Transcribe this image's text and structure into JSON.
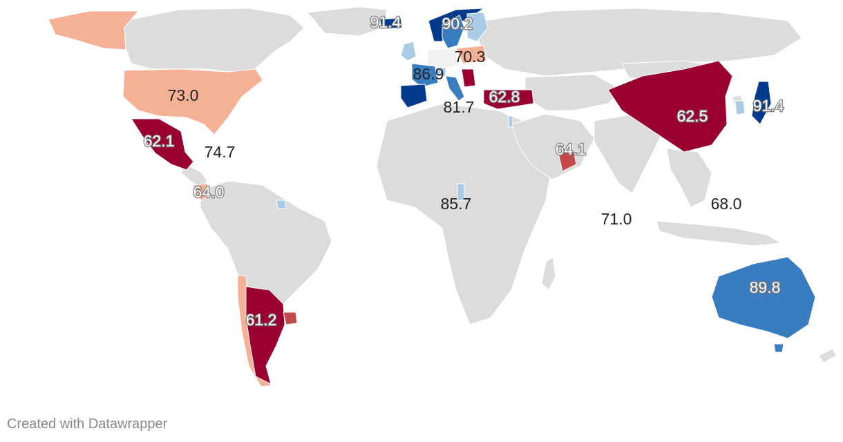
{
  "credit": "Created with Datawrapper",
  "colors": {
    "no_data": "#dcdcdc",
    "very_low": "#99002f",
    "low": "#c24a4a",
    "mid_low": "#f5b196",
    "mid": "#f2f2f2",
    "mid_high": "#a9cbe6",
    "high": "#3a7cc0",
    "very_high": "#003a8c",
    "border": "#ffffff",
    "dark_label": "#222222",
    "light_label_outline": "#7a7a7a"
  },
  "labels": [
    {
      "id": "norway-label",
      "value": "91.4"
    },
    {
      "id": "sweden-label",
      "value": "90.2"
    },
    {
      "id": "poland-label",
      "value": "70.3"
    },
    {
      "id": "usa-label",
      "value": "73.0"
    },
    {
      "id": "switzerland-label",
      "value": "86.9"
    },
    {
      "id": "turkey-label",
      "value": "62.8"
    },
    {
      "id": "italy-label",
      "value": "81.7"
    },
    {
      "id": "china-label",
      "value": "62.5"
    },
    {
      "id": "japan-label",
      "value": "91.4"
    },
    {
      "id": "mexico-label",
      "value": "62.1"
    },
    {
      "id": "caribbean-label",
      "value": "74.7"
    },
    {
      "id": "uae-label",
      "value": "64.1"
    },
    {
      "id": "colombia-label",
      "value": "64.0"
    },
    {
      "id": "rwanda-label",
      "value": "85.7"
    },
    {
      "id": "philippines-label",
      "value": "68.0"
    },
    {
      "id": "india-ocean-label",
      "value": "71.0"
    },
    {
      "id": "australia-label",
      "value": "89.8"
    },
    {
      "id": "argentina-label",
      "value": "61.2"
    }
  ]
}
